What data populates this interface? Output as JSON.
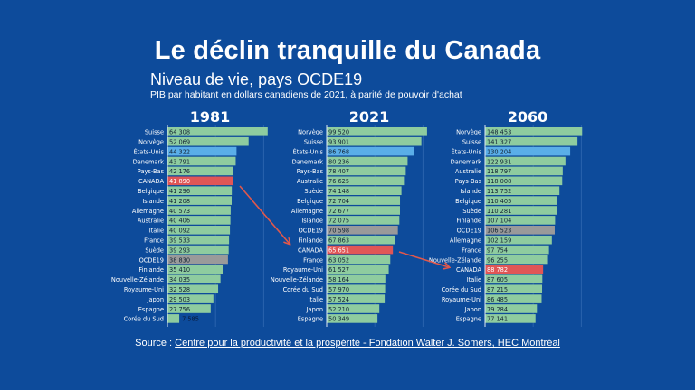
{
  "title": "Le déclin tranquille du Canada",
  "subtitle": "Niveau de vie, pays OCDE19",
  "note": "PIB par habitant en dollars canadiens de 2021, à parité de pouvoir d'achat",
  "source": {
    "prefix": "Source : ",
    "link_text": "Centre pour la productivité et la prospérité - Fondation Walter J. Somers, HEC Montréal"
  },
  "colors": {
    "background": "#0d4b9b",
    "default_bar": "#8ecc9f",
    "usa_bar": "#5aaee8",
    "canada_bar": "#e05656",
    "oecd_bar": "#9a9a9a",
    "arrow": "#e0584c"
  },
  "chart_data": [
    {
      "type": "bar",
      "orientation": "horizontal",
      "title": "1981",
      "categories": [
        "Suisse",
        "Norvège",
        "États-Unis",
        "Danemark",
        "Pays-Bas",
        "CANADA",
        "Belgique",
        "Islande",
        "Allemagne",
        "Australie",
        "Italie",
        "France",
        "Suède",
        "OCDE19",
        "Finlande",
        "Nouvelle-Zélande",
        "Royaume-Uni",
        "Japon",
        "Espagne",
        "Corée du Sud"
      ],
      "values": [
        64308,
        52069,
        44322,
        43791,
        42176,
        41890,
        41296,
        41208,
        40573,
        40406,
        40092,
        39533,
        39293,
        38830,
        35410,
        34035,
        32528,
        29503,
        27756,
        7585
      ],
      "labels": [
        "64 308",
        "52 069",
        "44 322",
        "43 791",
        "42 176",
        "41 890",
        "41 296",
        "41 208",
        "40 573",
        "40 406",
        "40 092",
        "39 533",
        "39 293",
        "38 830",
        "35 410",
        "34 035",
        "32 528",
        "29 503",
        "27 756",
        "7 585"
      ],
      "xlim": [
        0,
        65000
      ]
    },
    {
      "type": "bar",
      "orientation": "horizontal",
      "title": "2021",
      "categories": [
        "Norvège",
        "Suisse",
        "États-Unis",
        "Danemark",
        "Pays-Bas",
        "Australie",
        "Suède",
        "Belgique",
        "Allemagne",
        "Islande",
        "OCDE19",
        "Finlande",
        "CANADA",
        "France",
        "Royaume-Uni",
        "Nouvelle-Zélande",
        "Corée du Sud",
        "Italie",
        "Japon",
        "Espagne"
      ],
      "values": [
        99520,
        93901,
        86768,
        80236,
        78407,
        76625,
        74148,
        72704,
        72677,
        72075,
        70598,
        67863,
        65651,
        63052,
        61527,
        58164,
        57970,
        57524,
        52210,
        50349
      ],
      "labels": [
        "99 520",
        "93 901",
        "86 768",
        "80 236",
        "78 407",
        "76 625",
        "74 148",
        "72 704",
        "72 677",
        "72 075",
        "70 598",
        "67 863",
        "65 651",
        "63 052",
        "61 527",
        "58 164",
        "57 970",
        "57 524",
        "52 210",
        "50 349"
      ],
      "xlim": [
        0,
        100500
      ]
    },
    {
      "type": "bar",
      "orientation": "horizontal",
      "title": "2060",
      "categories": [
        "Norvège",
        "Suisse",
        "États-Unis",
        "Danemark",
        "Australie",
        "Pays-Bas",
        "Islande",
        "Belgique",
        "Suède",
        "Finlande",
        "OCDE19",
        "Allemagne",
        "France",
        "Nouvelle-Zélande",
        "CANADA",
        "Italie",
        "Corée du Sud",
        "Royaume-Uni",
        "Japon",
        "Espagne"
      ],
      "values": [
        148453,
        141327,
        130204,
        122931,
        118797,
        118008,
        113752,
        110405,
        110281,
        107104,
        106523,
        102159,
        97754,
        96255,
        88782,
        87605,
        87215,
        86485,
        79284,
        77141
      ],
      "labels": [
        "148 453",
        "141 327",
        "130 204",
        "122 931",
        "118 797",
        "118 008",
        "113 752",
        "110 405",
        "110 281",
        "107 104",
        "106 523",
        "102 159",
        "97 754",
        "96 255",
        "88 782",
        "87 605",
        "87 215",
        "86 485",
        "79 284",
        "77 141"
      ],
      "xlim": [
        0,
        155000
      ]
    }
  ]
}
